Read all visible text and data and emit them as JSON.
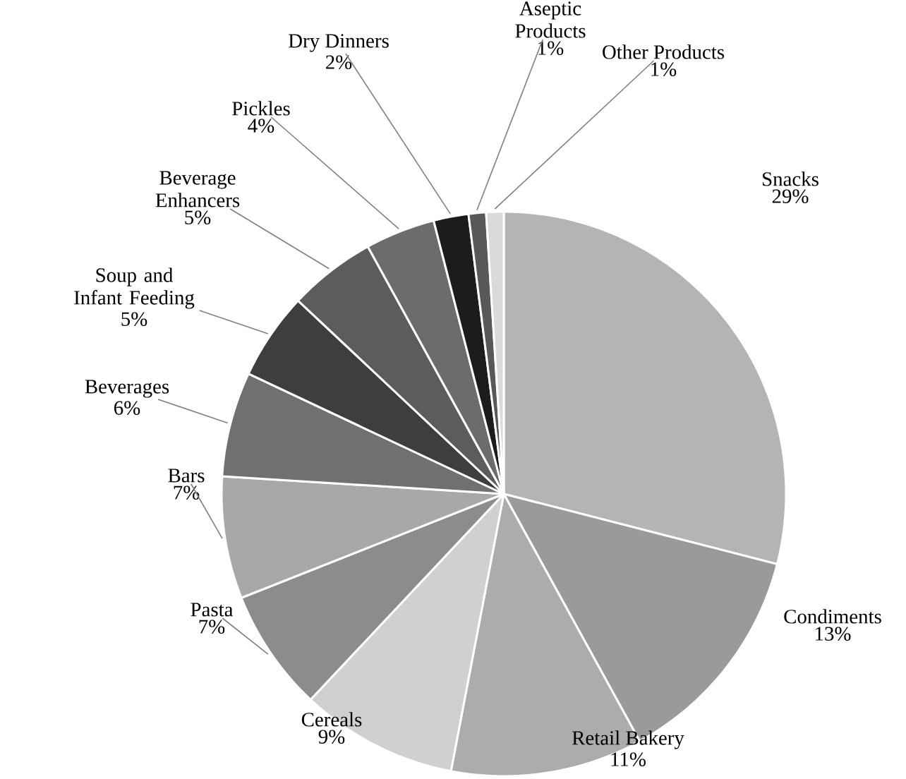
{
  "chart_data": {
    "type": "pie",
    "categories": [
      "Snacks",
      "Condiments",
      "Retail Bakery",
      "Cereals",
      "Pasta",
      "Bars",
      "Beverages",
      "Soup and Infant Feeding",
      "Beverage Enhancers",
      "Pickles",
      "Dry Dinners",
      "Aseptic Products",
      "Other Products"
    ],
    "values": [
      29,
      13,
      11,
      9,
      7,
      7,
      6,
      5,
      5,
      4,
      2,
      1,
      1
    ],
    "value_labels": [
      "29%",
      "13%",
      "11%",
      "9%",
      "7%",
      "7%",
      "6%",
      "5%",
      "5%",
      "4%",
      "2%",
      "1%",
      "1%"
    ],
    "colors": [
      "#b4b4b4",
      "#9a9a9a",
      "#acacac",
      "#d0d0d0",
      "#8c8c8c",
      "#a8a8a8",
      "#707070",
      "#3e3e3e",
      "#5c5c5c",
      "#6c6c6c",
      "#1c1c1c",
      "#585858",
      "#dadada"
    ]
  }
}
